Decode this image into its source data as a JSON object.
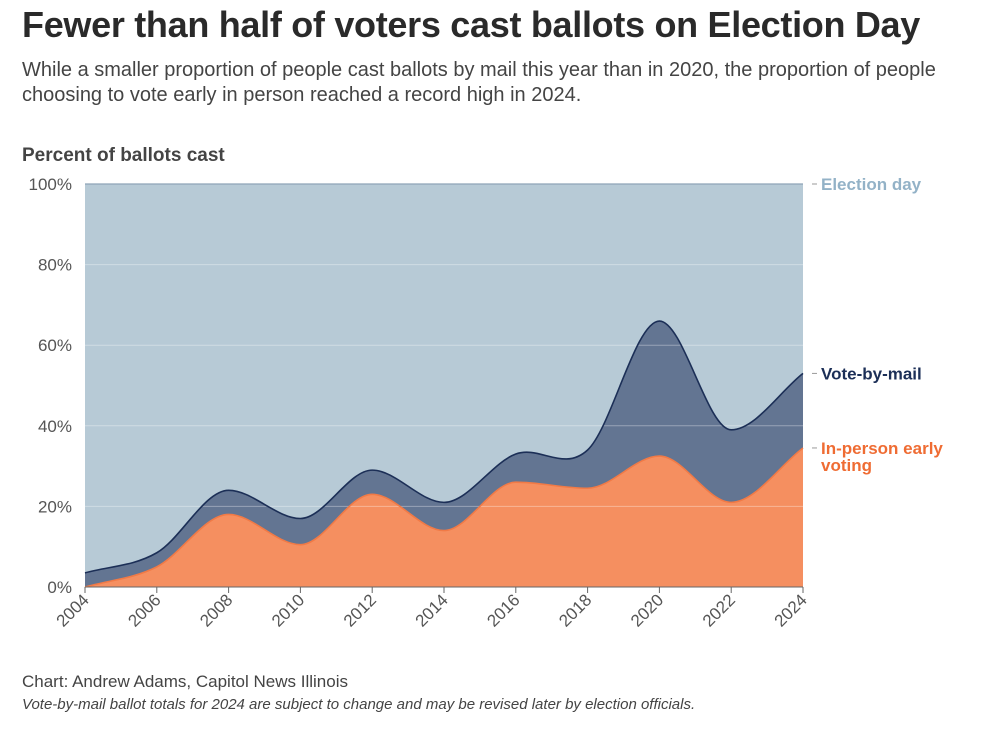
{
  "header": {
    "title": "Fewer than half of voters cast ballots on Election Day",
    "subtitle": "While a smaller proportion of people cast ballots by mail this year than in 2020, the proportion of people choosing to vote early in person reached a record high in 2024."
  },
  "footer": {
    "credit": "Chart: Andrew Adams, Capitol News Illinois",
    "note": "Vote-by-mail ballot totals for 2024 are subject to change and may be revised later by election officials."
  },
  "chart_data": {
    "type": "area",
    "title": "Fewer than half of voters cast ballots on Election Day",
    "ylabel": "Percent of ballots cast",
    "xlabel": "",
    "x": [
      2004,
      2006,
      2008,
      2010,
      2012,
      2014,
      2016,
      2018,
      2020,
      2022,
      2024
    ],
    "ylim": [
      0,
      100
    ],
    "yticks": [
      0,
      20,
      40,
      60,
      80,
      100
    ],
    "ytick_labels": [
      "0%",
      "20%",
      "40%",
      "60%",
      "80%",
      "100%"
    ],
    "xtick_labels": [
      "2004",
      "2006",
      "2008",
      "2010",
      "2012",
      "2014",
      "2016",
      "2018",
      "2020",
      "2022",
      "2024"
    ],
    "stacked": true,
    "series": [
      {
        "name": "In-person early voting",
        "label_lines": [
          "In-person early",
          "voting"
        ],
        "color": "#f58f60",
        "line_color": "#f17a46",
        "label_color": "#ef6c33",
        "values": [
          0,
          5,
          18,
          10.5,
          23,
          14,
          26,
          24.5,
          32.5,
          21,
          34.5
        ]
      },
      {
        "name": "Vote-by-mail",
        "label_lines": [
          "Vote-by-mail"
        ],
        "color": "#637592",
        "line_color": "#1c2f57",
        "label_color": "#1c2f57",
        "values": [
          3.5,
          3.5,
          6,
          6.5,
          6,
          7,
          7,
          9.5,
          33.5,
          18,
          18.5
        ]
      },
      {
        "name": "Election day",
        "label_lines": [
          "Election day"
        ],
        "color": "#b7cad6",
        "line_color": "#8ea5b8",
        "label_color": "#93b2c7",
        "values": [
          96.5,
          91.5,
          76,
          83,
          71,
          79,
          67,
          66,
          34,
          61,
          47
        ]
      }
    ],
    "legend": "direct labels at right"
  }
}
